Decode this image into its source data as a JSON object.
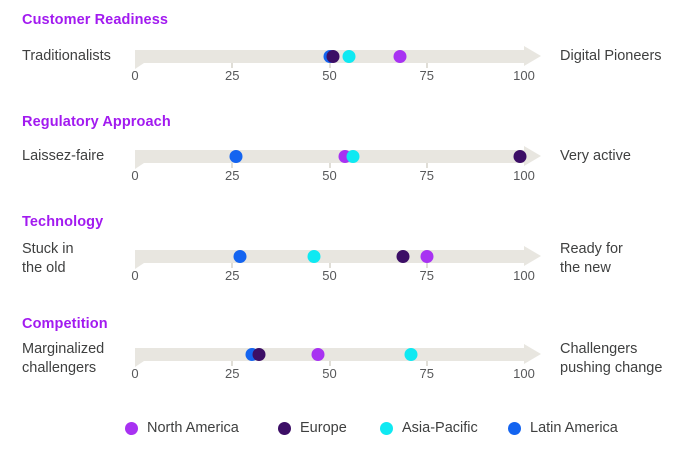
{
  "chart_data": {
    "type": "scatter",
    "subtype": "dot-on-horizontal-scale",
    "axis": {
      "min": 0,
      "max": 100,
      "ticks": [
        0,
        25,
        50,
        75,
        100
      ]
    },
    "series_names": [
      "North America",
      "Europe",
      "Asia-Pacific",
      "Latin America"
    ],
    "rows": [
      {
        "heading": "Customer Readiness",
        "left_label": "Traditionalists",
        "right_label": "Digital Pioneers",
        "values": {
          "North America": 68,
          "Europe": 51,
          "Asia-Pacific": 55,
          "Latin America": 50
        }
      },
      {
        "heading": "Regulatory Approach",
        "left_label": "Laissez-faire",
        "right_label": "Very active",
        "values": {
          "North America": 54,
          "Europe": 99,
          "Asia-Pacific": 56,
          "Latin America": 26
        }
      },
      {
        "heading": "Technology",
        "left_label": "Stuck in\nthe old",
        "right_label": "Ready for\nthe new",
        "values": {
          "North America": 75,
          "Europe": 69,
          "Asia-Pacific": 46,
          "Latin America": 27
        }
      },
      {
        "heading": "Competition",
        "left_label": "Marginalized\nchallengers",
        "right_label": "Challengers\npushing change",
        "values": {
          "North America": 47,
          "Europe": 32,
          "Asia-Pacific": 71,
          "Latin America": 30
        }
      }
    ],
    "legend": [
      {
        "label": "North America",
        "color": "#A832F2"
      },
      {
        "label": "Europe",
        "color": "#3C0E66"
      },
      {
        "label": "Asia-Pacific",
        "color": "#0FE9F2"
      },
      {
        "label": "Latin America",
        "color": "#1464F0"
      }
    ],
    "layout": {
      "legend_position": "bottom",
      "grid": false,
      "track_color": "#E8E6E0",
      "heading_color": "#A21AF0"
    }
  }
}
